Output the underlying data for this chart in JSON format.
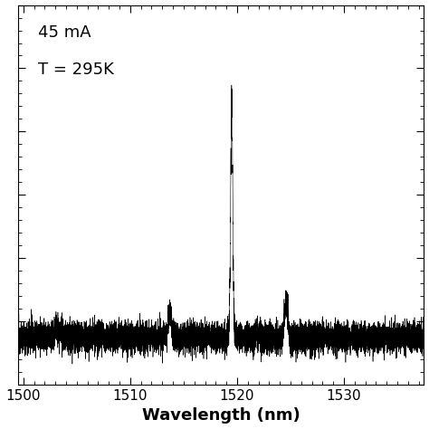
{
  "xlim": [
    1499.5,
    1537.5
  ],
  "ylim_bottom": -200,
  "ylim_top": 1400,
  "xlabel": "Wavelength (nm)",
  "xlabel_fontsize": 13,
  "xticks": [
    1500,
    1510,
    1520,
    1530
  ],
  "annotation_line1": "45 mA",
  "annotation_line2": "T = 295K",
  "annotation_fontsize": 13,
  "noise_amplitude": 30,
  "main_peak_wl": 1519.5,
  "main_peak_height": 1000,
  "secondary_peak1_wl": 1513.7,
  "secondary_peak1_height": 110,
  "secondary_peak2_wl": 1524.6,
  "secondary_peak2_height": 155,
  "line_color": "#000000",
  "background_color": "#ffffff",
  "seed": 12345,
  "n_points": 12000,
  "spike_count": 120,
  "spike_min": 20,
  "spike_max": 60
}
